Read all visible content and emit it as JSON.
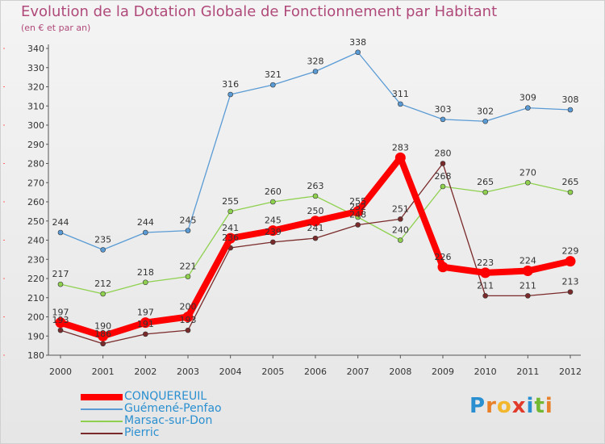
{
  "header": {
    "title": "Evolution de la Dotation Globale de Fonctionnement par Habitant",
    "subtitle": "(en € et par an)"
  },
  "brand": {
    "letters": [
      "P",
      "r",
      "o",
      "x",
      "i",
      "t",
      "i"
    ],
    "colors": [
      "#2a8fd0",
      "#e8802a",
      "#f2b72c",
      "#e23a2a",
      "#2a8fd0",
      "#73b832",
      "#e8802a"
    ]
  },
  "chart_data": {
    "type": "line",
    "title": "Evolution de la Dotation Globale de Fonctionnement par Habitant",
    "subtitle": "(en € et par an)",
    "x": [
      "2000",
      "2001",
      "2002",
      "2003",
      "2004",
      "2005",
      "2006",
      "2007",
      "2008",
      "2009",
      "2010",
      "2011",
      "2012"
    ],
    "ylim": [
      180,
      340
    ],
    "yticks": [
      180,
      190,
      200,
      210,
      220,
      230,
      240,
      250,
      260,
      270,
      280,
      290,
      300,
      310,
      320,
      330,
      340
    ],
    "grid": false,
    "legend_position": "bottom-left",
    "series": [
      {
        "name": "CONQUEREUIL",
        "color": "#ff0000",
        "values": [
          197,
          190,
          197,
          200,
          241,
          245,
          250,
          255,
          283,
          226,
          223,
          224,
          229
        ]
      },
      {
        "name": "Guémené-Penfao",
        "color": "#5a9bd5",
        "values": [
          244,
          235,
          244,
          245,
          316,
          321,
          328,
          338,
          311,
          303,
          302,
          309,
          308
        ]
      },
      {
        "name": "Marsac-sur-Don",
        "color": "#8fd14f",
        "values": [
          217,
          212,
          218,
          221,
          255,
          260,
          263,
          252,
          240,
          268,
          265,
          270,
          265
        ]
      },
      {
        "name": "Pierric",
        "color": "#7a2a2a",
        "values": [
          193,
          186,
          191,
          193,
          236,
          239,
          241,
          248,
          251,
          280,
          211,
          211,
          213
        ]
      }
    ]
  }
}
